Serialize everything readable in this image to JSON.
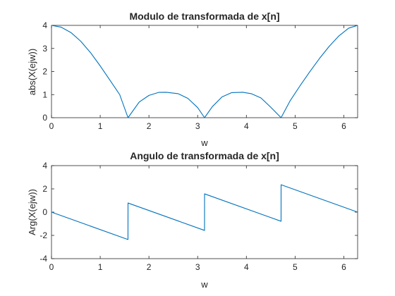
{
  "chart_data": [
    {
      "type": "line",
      "title": "Modulo de transformada de x[n]",
      "xlabel": "w",
      "ylabel": "abs(X(ejw))",
      "xlim": [
        0,
        6.2832
      ],
      "ylim": [
        0,
        4
      ],
      "xticks": [
        "0",
        "1",
        "2",
        "3",
        "4",
        "5",
        "6"
      ],
      "yticks": [
        "0",
        "1",
        "2",
        "3",
        "4"
      ],
      "grid": false,
      "series_color": "#0072BD",
      "series": [
        {
          "x": [
            0,
            0.2,
            0.4,
            0.6,
            0.8,
            1.0,
            1.2,
            1.4,
            1.5708,
            1.8,
            2.0,
            2.2,
            2.3562,
            2.6,
            2.8,
            3.0,
            3.1416,
            3.3,
            3.5,
            3.7,
            3.927,
            4.1,
            4.3,
            4.5,
            4.7124,
            4.9,
            5.1,
            5.3,
            5.5,
            5.7,
            5.9,
            6.1,
            6.2832
          ],
          "y": [
            4.0,
            3.921,
            3.688,
            3.313,
            2.821,
            2.244,
            1.624,
            1.0,
            0.0,
            0.678,
            0.966,
            1.096,
            1.1,
            1.04,
            0.835,
            0.437,
            0.0,
            0.475,
            0.902,
            1.087,
            1.1,
            1.041,
            0.855,
            0.455,
            0.0,
            0.74,
            1.378,
            1.986,
            2.564,
            3.091,
            3.545,
            3.879,
            4.0
          ]
        }
      ]
    },
    {
      "type": "line",
      "title": "Angulo de transformada de x[n]",
      "xlabel": "w",
      "ylabel": "Arg(X(ejw))",
      "xlim": [
        0,
        6.2832
      ],
      "ylim": [
        -4,
        4
      ],
      "xticks": [
        "0",
        "1",
        "2",
        "3",
        "4",
        "5",
        "6"
      ],
      "yticks": [
        "-4",
        "-2",
        "0",
        "2",
        "4"
      ],
      "grid": false,
      "series_color": "#0072BD",
      "series": [
        {
          "x": [
            0,
            1.57,
            1.5708,
            3.141,
            3.1416,
            4.712,
            4.7124,
            6.2832
          ],
          "y": [
            0.0,
            -2.356,
            0.785,
            -1.571,
            1.571,
            -0.785,
            2.356,
            0.0
          ]
        }
      ]
    }
  ]
}
